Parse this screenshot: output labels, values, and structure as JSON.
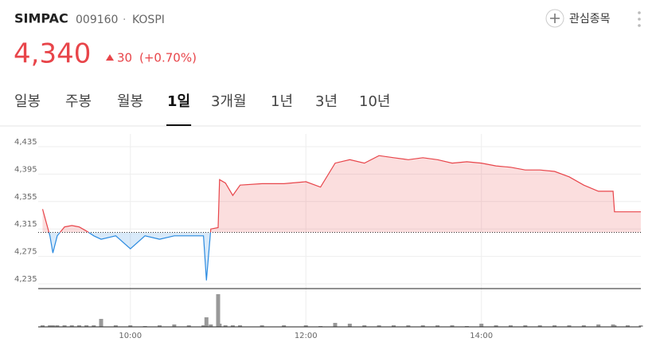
{
  "header": {
    "symbol": "SIMPAC",
    "code": "009160",
    "separator": "·",
    "market": "KOSPI",
    "price": "4,340",
    "change": "30",
    "change_pct": "(+0.70%)",
    "watch_button": "관심종목"
  },
  "tabs": {
    "items": [
      "일봉",
      "주봉",
      "월봉",
      "1일",
      "3개월",
      "1년",
      "3년",
      "10년"
    ],
    "selected": 3
  },
  "chart_data": {
    "type": "line",
    "x": [
      "09:00",
      "09:05",
      "09:07",
      "09:10",
      "09:15",
      "09:20",
      "09:25",
      "09:30",
      "09:35",
      "09:40",
      "09:50",
      "10:00",
      "10:10",
      "10:20",
      "10:30",
      "10:40",
      "10:50",
      "10:52",
      "10:55",
      "11:00",
      "11:01",
      "11:05",
      "11:10",
      "11:15",
      "11:30",
      "11:45",
      "12:00",
      "12:10",
      "12:20",
      "12:30",
      "12:40",
      "12:50",
      "13:00",
      "13:10",
      "13:20",
      "13:30",
      "13:40",
      "13:50",
      "14:00",
      "14:10",
      "14:20",
      "14:30",
      "14:40",
      "14:50",
      "15:00",
      "15:10",
      "15:20",
      "15:30",
      "15:31",
      "15:40",
      "15:49"
    ],
    "series": [
      {
        "name": "price",
        "values": [
          4344,
          4305,
          4280,
          4305,
          4318,
          4320,
          4318,
          4312,
          4305,
          4300,
          4305,
          4286,
          4305,
          4300,
          4305,
          4305,
          4305,
          4240,
          4315,
          4317,
          4387,
          4382,
          4364,
          4379,
          4381,
          4381,
          4384,
          4376,
          4411,
          4416,
          4411,
          4422,
          4419,
          4416,
          4419,
          4416,
          4411,
          4413,
          4411,
          4407,
          4405,
          4401,
          4401,
          4399,
          4391,
          4379,
          4370,
          4370,
          4340,
          4340,
          4340
        ]
      },
      {
        "name": "volume",
        "color": "#999999",
        "values": [
          2,
          2,
          2,
          2,
          2,
          2,
          2,
          2,
          2,
          10,
          2,
          2,
          1,
          2,
          3,
          2,
          2,
          12,
          3,
          41,
          4,
          2,
          2,
          2,
          2,
          2,
          2,
          1,
          5,
          4,
          2,
          2,
          2,
          2,
          2,
          2,
          2,
          1,
          4,
          2,
          2,
          2,
          2,
          2,
          2,
          2,
          3,
          3,
          2,
          2,
          2
        ]
      }
    ],
    "up_color": "#e8454a",
    "down_color": "#2a8ae0",
    "baseline": 4310,
    "xlim": [
      "08:57",
      "15:49"
    ],
    "xticks": [
      "10:00",
      "12:00",
      "14:00"
    ],
    "ylim": [
      4235,
      4435
    ],
    "yticks": [
      {
        "value": 4235,
        "label": "4,235"
      },
      {
        "value": 4275,
        "label": "4,275"
      },
      {
        "value": 4315,
        "label": "4,315"
      },
      {
        "value": 4355,
        "label": "4,355"
      },
      {
        "value": 4395,
        "label": "4,395"
      },
      {
        "value": 4435,
        "label": "4,435"
      }
    ],
    "volume_ylim": [
      0,
      45
    ],
    "grid": true
  }
}
